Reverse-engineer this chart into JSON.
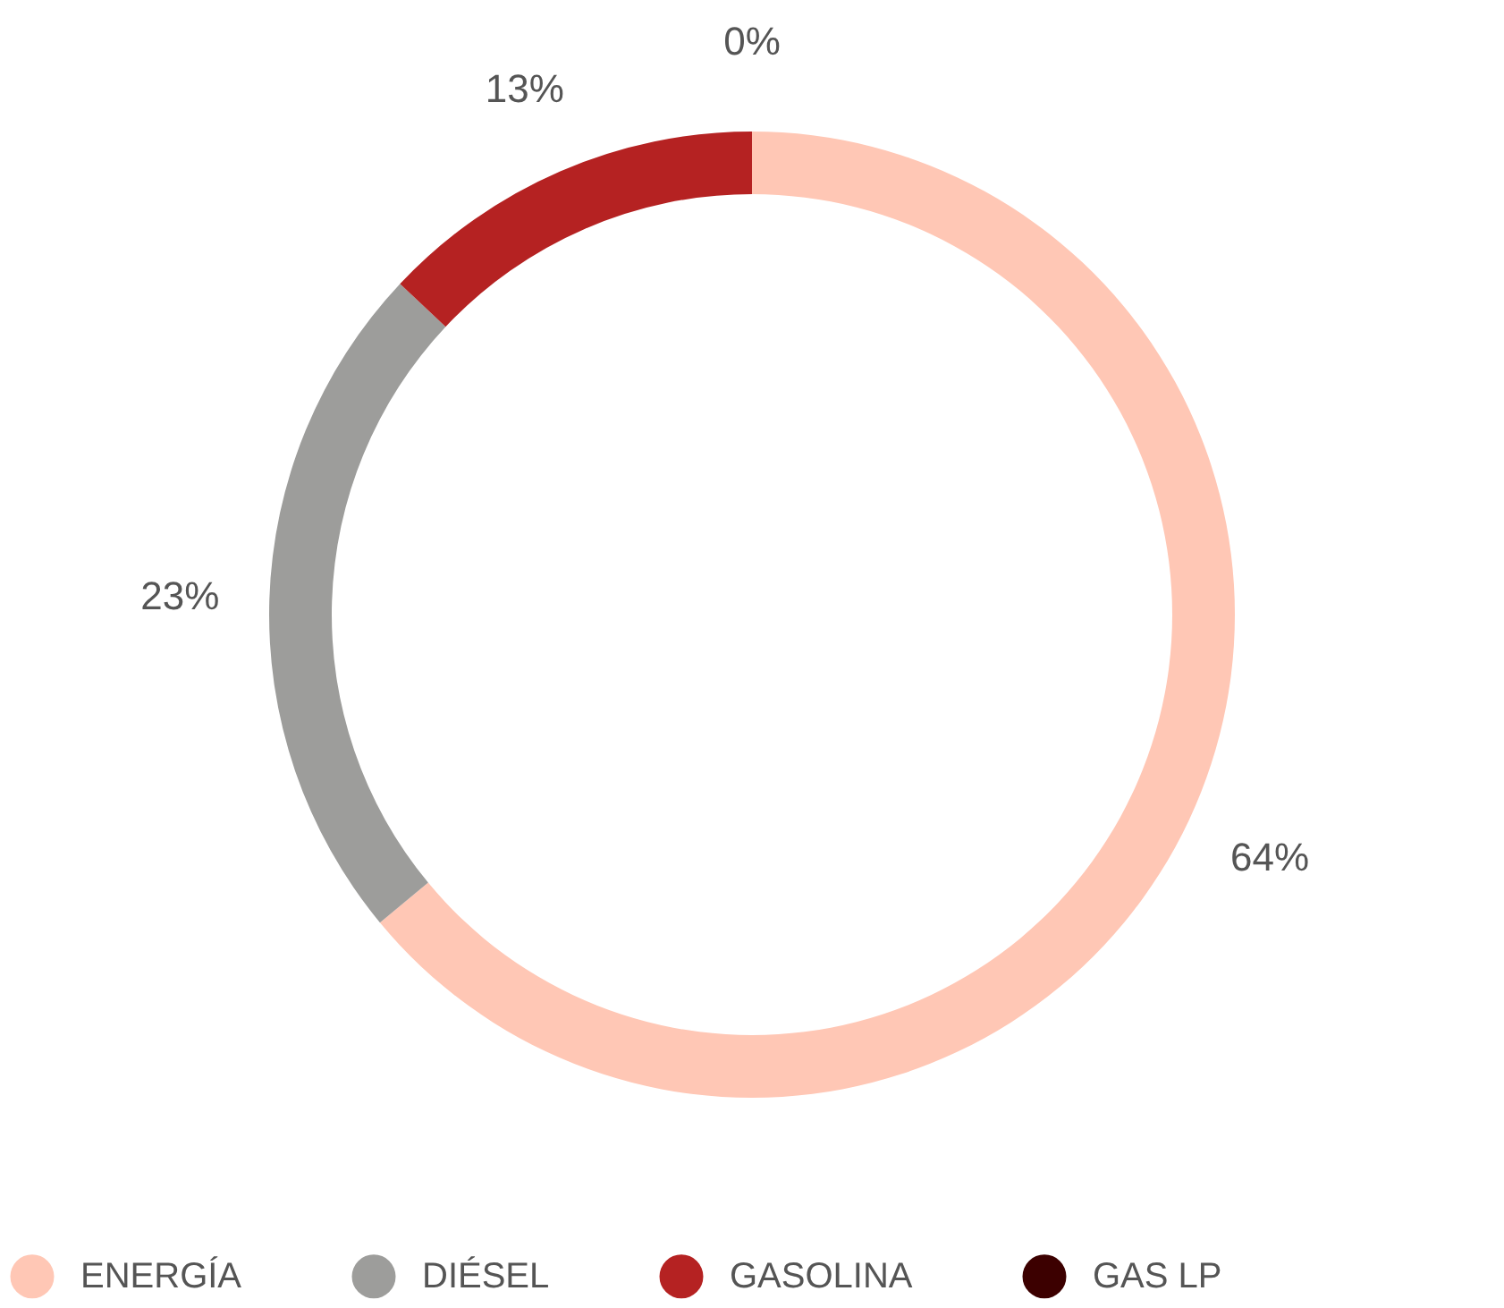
{
  "chart_data": {
    "type": "donut",
    "categories": [
      "ENERGÍA",
      "DIÉSEL",
      "GASOLINA",
      "GAS LP"
    ],
    "values": [
      64,
      23,
      13,
      0
    ],
    "colors": [
      "#ffc7b5",
      "#9d9d9b",
      "#b52222",
      "#3c0000"
    ],
    "value_labels": [
      "64%",
      "23%",
      "13%",
      "0%"
    ],
    "legend": "bottom"
  }
}
